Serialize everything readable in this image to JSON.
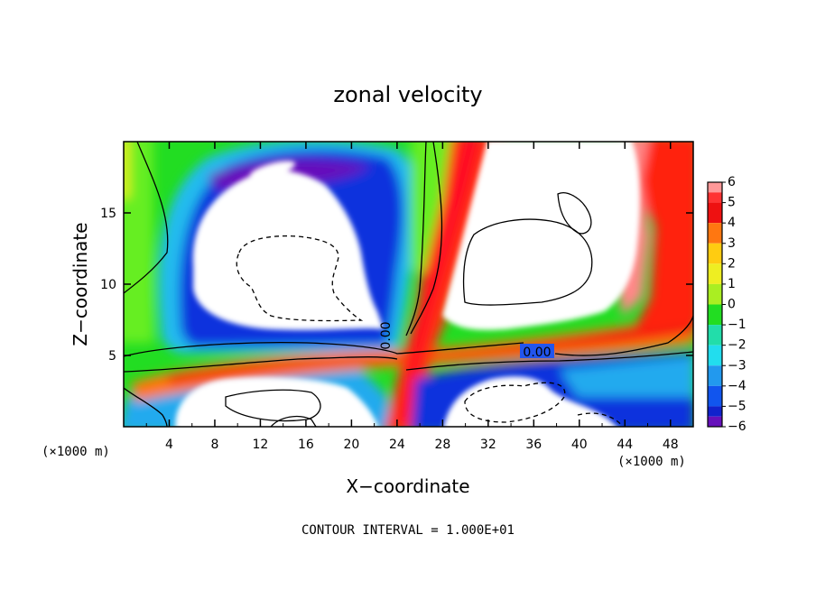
{
  "chart_data": {
    "type": "heatmap",
    "title": "zonal velocity",
    "xlabel": "X−coordinate",
    "ylabel": "Z−coordinate",
    "x_unit_left": "(×1000 m)",
    "x_unit_right": "(×1000 m)",
    "footnote": "CONTOUR INTERVAL = 1.000E+01",
    "xlim": [
      0,
      50
    ],
    "ylim": [
      0,
      20
    ],
    "x_ticks": [
      4,
      8,
      12,
      16,
      20,
      24,
      28,
      32,
      36,
      40,
      44,
      48
    ],
    "x_tick_labels": [
      "4",
      "8",
      "12",
      "16",
      "20",
      "24",
      "28",
      "32",
      "36",
      "40",
      "44",
      "48"
    ],
    "y_ticks": [
      5,
      10,
      15
    ],
    "y_tick_labels": [
      "5",
      "10",
      "15"
    ],
    "contour_label": "0.00",
    "colorbar": {
      "min": -6,
      "max": 6,
      "ticks": [
        6,
        5,
        4,
        3,
        2,
        1,
        0,
        -1,
        -2,
        -3,
        -4,
        -5,
        -6
      ],
      "tick_labels": [
        "6",
        "5",
        "4",
        "3",
        "2",
        "1",
        "0",
        "−1",
        "−2",
        "−3",
        "−4",
        "−5",
        "−6"
      ]
    },
    "regions": {
      "upper_left_cell_center": [
        16,
        12
      ],
      "upper_right_cell_center": [
        36,
        13.5
      ],
      "lower_left_cell_center": [
        15,
        1.5
      ],
      "lower_right_cell_center": [
        36,
        1.5
      ],
      "surface_jet_z": 5
    },
    "grid": false,
    "legend": "colorbar-right"
  }
}
